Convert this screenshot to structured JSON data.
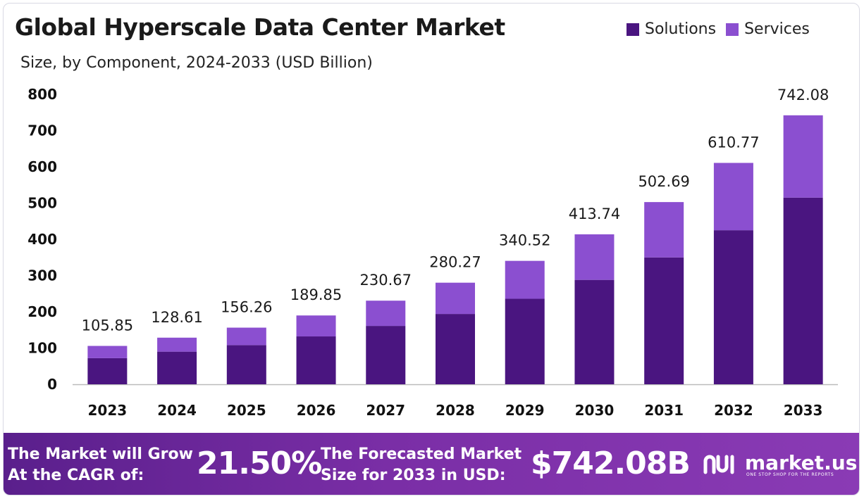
{
  "colors": {
    "solutions": "#4a1580",
    "services": "#8b4fd0",
    "axis": "#bbbbbb"
  },
  "chart_data": {
    "type": "bar",
    "stacked": true,
    "title": "Global Hyperscale Data Center Market",
    "subtitle": "Size, by Component, 2024-2033 (USD Billion)",
    "categories": [
      "2023",
      "2024",
      "2025",
      "2026",
      "2027",
      "2028",
      "2029",
      "2030",
      "2031",
      "2032",
      "2033"
    ],
    "series": [
      {
        "name": "Solutions",
        "values": [
          72,
          90,
          108,
          132,
          161,
          194,
          236,
          288,
          350,
          425,
          515
        ]
      },
      {
        "name": "Services",
        "values": [
          33.85,
          38.61,
          48.26,
          57.85,
          69.67,
          86.27,
          104.52,
          125.74,
          152.69,
          185.77,
          227.08
        ]
      }
    ],
    "totals": [
      105.85,
      128.61,
      156.26,
      189.85,
      230.67,
      280.27,
      340.52,
      413.74,
      502.69,
      610.77,
      742.08
    ],
    "total_labels": [
      "105.85",
      "128.61",
      "156.26",
      "189.85",
      "230.67",
      "280.27",
      "340.52",
      "413.74",
      "502.69",
      "610.77",
      "742.08"
    ],
    "yticks": [
      0,
      100,
      200,
      300,
      400,
      500,
      600,
      700,
      800
    ],
    "ylim": [
      0,
      800
    ],
    "grid": false,
    "legend_position": "top-right"
  },
  "footer": {
    "cagr_label_1": "The Market will Grow",
    "cagr_label_2": "At the CAGR of:",
    "cagr_value": "21.50%",
    "forecast_label_1": "The Forecasted Market",
    "forecast_label_2": "Size for 2033 in USD:",
    "forecast_value": "$742.08B",
    "brand_name": "market.us",
    "brand_tagline": "ONE STOP SHOP FOR THE REPORTS"
  }
}
